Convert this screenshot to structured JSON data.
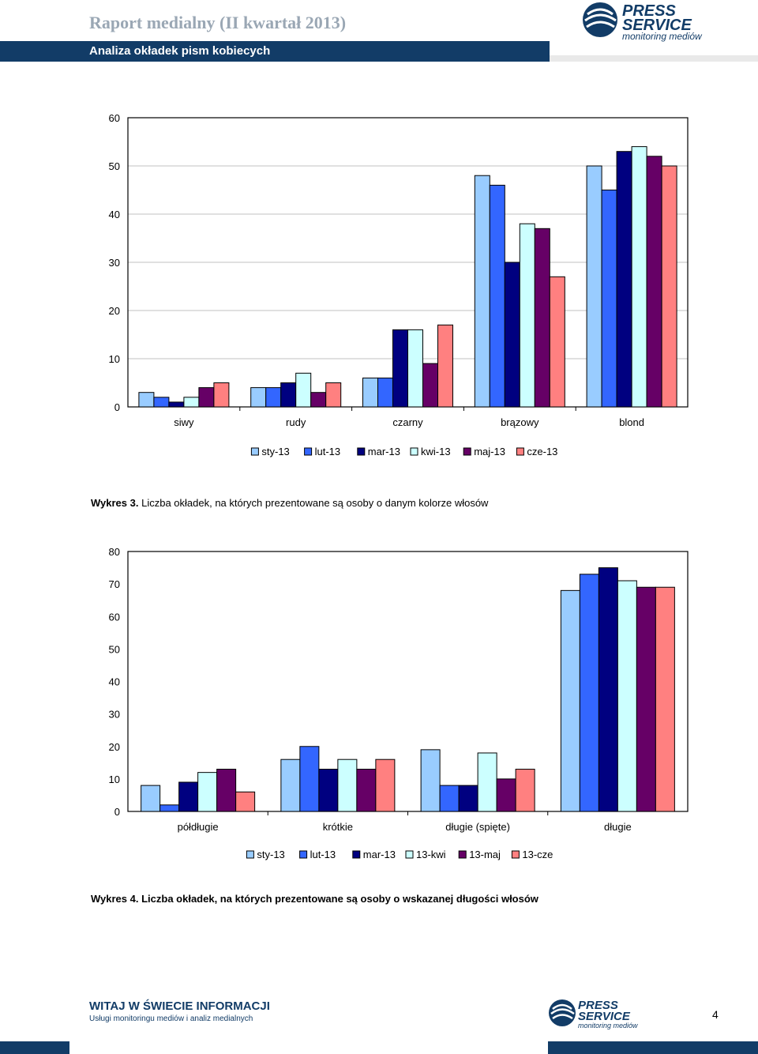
{
  "header": {
    "report_title": "Raport medialny (II kwartał 2013)",
    "subtitle": "Analiza okładek pism kobiecych",
    "logo_line1": "PRESS",
    "logo_line2": "SERVICE",
    "logo_line3": "monitoring mediów"
  },
  "colors": {
    "header_bar": "#123c67",
    "series": [
      "#99ccff",
      "#3366ff",
      "#000080",
      "#ccffff",
      "#660066",
      "#ff8080"
    ]
  },
  "chart_data": [
    {
      "type": "bar",
      "categories": [
        "siwy",
        "rudy",
        "czarny",
        "brązowy",
        "blond"
      ],
      "series": [
        {
          "name": "sty-13",
          "values": [
            3,
            4,
            6,
            48,
            50
          ]
        },
        {
          "name": "lut-13",
          "values": [
            2,
            4,
            6,
            46,
            45
          ]
        },
        {
          "name": "mar-13",
          "values": [
            1,
            5,
            16,
            30,
            53
          ]
        },
        {
          "name": "kwi-13",
          "values": [
            2,
            7,
            16,
            38,
            54
          ]
        },
        {
          "name": "maj-13",
          "values": [
            4,
            3,
            9,
            37,
            52
          ]
        },
        {
          "name": "cze-13",
          "values": [
            5,
            5,
            17,
            27,
            50
          ]
        }
      ],
      "ylim": [
        0,
        60
      ],
      "yticks": [
        0,
        10,
        20,
        30,
        40,
        50,
        60
      ],
      "legend": "bottom",
      "grid": true
    },
    {
      "type": "bar",
      "categories": [
        "półdługie",
        "krótkie",
        "długie (spięte)",
        "długie"
      ],
      "series": [
        {
          "name": "sty-13",
          "values": [
            8,
            16,
            19,
            68
          ]
        },
        {
          "name": "lut-13",
          "values": [
            2,
            20,
            8,
            73
          ]
        },
        {
          "name": "mar-13",
          "values": [
            9,
            13,
            8,
            75
          ]
        },
        {
          "name": "13-kwi",
          "values": [
            12,
            16,
            18,
            71
          ]
        },
        {
          "name": "13-maj",
          "values": [
            13,
            13,
            10,
            69
          ]
        },
        {
          "name": "13-cze",
          "values": [
            6,
            16,
            13,
            69
          ]
        }
      ],
      "ylim": [
        0,
        80
      ],
      "yticks": [
        0,
        10,
        20,
        30,
        40,
        50,
        60,
        70,
        80
      ],
      "legend": "bottom",
      "grid": false
    }
  ],
  "captions": {
    "chart1_number": "Wykres 3.",
    "chart1_text": "Liczba okładek, na których prezentowane są osoby o danym kolorze włosów",
    "chart2_number": "Wykres 4.",
    "chart2_text": "Liczba okładek, na których prezentowane są osoby o wskazanej długości włosów"
  },
  "footer": {
    "tagline": "WITAJ W ŚWIECIE INFORMACJI",
    "sub": "Usługi monitoringu mediów i analiz medialnych",
    "page_number": "4"
  }
}
